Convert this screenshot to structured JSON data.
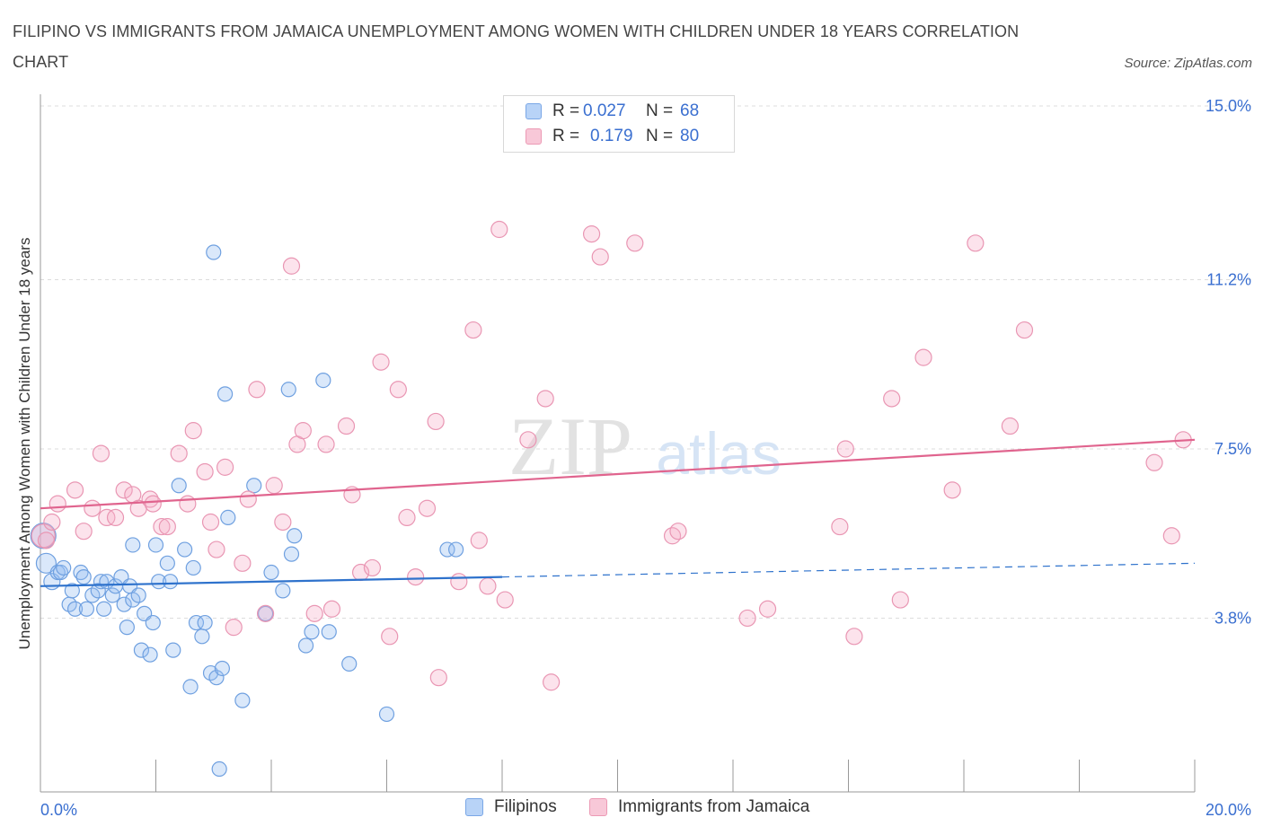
{
  "title": "FILIPINO VS IMMIGRANTS FROM JAMAICA UNEMPLOYMENT AMONG WOMEN WITH CHILDREN UNDER 18 YEARS CORRELATION CHART",
  "source": "Source: ZipAtlas.com",
  "watermark": {
    "zip": "ZIP",
    "atlas": "atlas"
  },
  "legend": {
    "r_label": "R =",
    "n_label": "N =",
    "rows": [
      {
        "name": "Filipinos",
        "r": "0.027",
        "n": "68",
        "fill": "#b8d3f7",
        "stroke": "#7aa7e6"
      },
      {
        "name": "Immigrants from Jamaica",
        "r": "0.179",
        "n": "80",
        "fill": "#f8c8d8",
        "stroke": "#ec9ab5"
      }
    ]
  },
  "colors": {
    "blue_fill": "rgba(150,190,240,0.35)",
    "blue_stroke": "#6fa0e0",
    "blue_line": "#2e72cc",
    "pink_fill": "rgba(245,175,200,0.35)",
    "pink_stroke": "#e996b3",
    "pink_line": "#e0648e",
    "tick_label": "#3a6fd0",
    "grid": "#dcdcdc"
  },
  "chart_data": {
    "type": "scatter",
    "xlabel": "",
    "ylabel": "Unemployment Among Women with Children Under 18 years",
    "xlim": [
      0,
      20
    ],
    "ylim": [
      0,
      15
    ],
    "x_tick_labels": [
      {
        "value": 0,
        "label": "0.0%"
      },
      {
        "value": 20,
        "label": "20.0%"
      }
    ],
    "y_tick_labels": [
      {
        "value": 3.8,
        "label": "3.8%"
      },
      {
        "value": 7.5,
        "label": "7.5%"
      },
      {
        "value": 11.2,
        "label": "11.2%"
      },
      {
        "value": 15.0,
        "label": "15.0%"
      }
    ],
    "x_minor_ticks": [
      2,
      4,
      6,
      8,
      10,
      12,
      14,
      16,
      18
    ],
    "series": [
      {
        "name": "Filipinos",
        "color": "blue",
        "trend": {
          "x0": 0,
          "y0": 4.5,
          "x1": 8,
          "y1": 4.7,
          "dashed_to_x": 20,
          "dashed_to_y": 5.0
        },
        "points": [
          [
            0.05,
            5.6,
            14
          ],
          [
            0.1,
            5.0,
            11
          ],
          [
            0.2,
            4.6,
            9
          ],
          [
            0.3,
            4.8,
            8
          ],
          [
            0.35,
            4.8,
            8
          ],
          [
            0.4,
            4.9,
            8
          ],
          [
            0.5,
            4.1,
            8
          ],
          [
            0.55,
            4.4,
            8
          ],
          [
            0.6,
            4.0,
            8
          ],
          [
            0.7,
            4.8,
            8
          ],
          [
            0.75,
            4.7,
            8
          ],
          [
            0.8,
            4.0,
            8
          ],
          [
            0.9,
            4.3,
            8
          ],
          [
            1.0,
            4.4,
            8
          ],
          [
            1.05,
            4.6,
            8
          ],
          [
            1.1,
            4.0,
            8
          ],
          [
            1.15,
            4.6,
            8
          ],
          [
            1.25,
            4.3,
            8
          ],
          [
            1.3,
            4.5,
            8
          ],
          [
            1.4,
            4.7,
            8
          ],
          [
            1.45,
            4.1,
            8
          ],
          [
            1.5,
            3.6,
            8
          ],
          [
            1.55,
            4.5,
            8
          ],
          [
            1.6,
            4.2,
            8
          ],
          [
            1.7,
            4.3,
            8
          ],
          [
            1.6,
            5.4,
            8
          ],
          [
            1.8,
            3.9,
            8
          ],
          [
            1.75,
            3.1,
            8
          ],
          [
            1.9,
            3.0,
            8
          ],
          [
            1.95,
            3.7,
            8
          ],
          [
            2.0,
            5.4,
            8
          ],
          [
            2.05,
            4.6,
            8
          ],
          [
            2.2,
            5.0,
            8
          ],
          [
            2.25,
            4.6,
            8
          ],
          [
            2.3,
            3.1,
            8
          ],
          [
            2.4,
            6.7,
            8
          ],
          [
            2.5,
            5.3,
            8
          ],
          [
            2.6,
            2.3,
            8
          ],
          [
            2.65,
            4.9,
            8
          ],
          [
            2.7,
            3.7,
            8
          ],
          [
            2.8,
            3.4,
            8
          ],
          [
            2.85,
            3.7,
            8
          ],
          [
            2.95,
            2.6,
            8
          ],
          [
            3.0,
            11.8,
            8
          ],
          [
            3.05,
            2.5,
            8
          ],
          [
            3.1,
            0.5,
            8
          ],
          [
            3.15,
            2.7,
            8
          ],
          [
            3.2,
            8.7,
            8
          ],
          [
            3.25,
            6.0,
            8
          ],
          [
            3.5,
            2.0,
            8
          ],
          [
            3.7,
            6.7,
            8
          ],
          [
            3.9,
            3.9,
            8
          ],
          [
            4.0,
            4.8,
            8
          ],
          [
            4.2,
            4.4,
            8
          ],
          [
            4.3,
            8.8,
            8
          ],
          [
            4.35,
            5.2,
            8
          ],
          [
            4.4,
            5.6,
            8
          ],
          [
            4.6,
            3.2,
            8
          ],
          [
            4.7,
            3.5,
            8
          ],
          [
            4.9,
            9.0,
            8
          ],
          [
            5.0,
            3.5,
            8
          ],
          [
            5.35,
            2.8,
            8
          ],
          [
            6.0,
            1.7,
            8
          ],
          [
            7.05,
            5.3,
            8
          ],
          [
            7.2,
            5.3,
            8
          ]
        ]
      },
      {
        "name": "Immigrants from Jamaica",
        "color": "pink",
        "trend": {
          "x0": 0,
          "y0": 6.2,
          "x1": 20,
          "y1": 7.7
        },
        "points": [
          [
            0.05,
            5.6,
            13
          ],
          [
            0.1,
            5.5,
            9
          ],
          [
            0.2,
            5.9,
            9
          ],
          [
            0.3,
            6.3,
            9
          ],
          [
            0.6,
            6.6,
            9
          ],
          [
            0.75,
            5.7,
            9
          ],
          [
            0.9,
            6.2,
            9
          ],
          [
            1.05,
            7.4,
            9
          ],
          [
            1.15,
            6.0,
            9
          ],
          [
            1.3,
            6.0,
            9
          ],
          [
            1.45,
            6.6,
            9
          ],
          [
            1.6,
            6.5,
            9
          ],
          [
            1.7,
            6.2,
            9
          ],
          [
            1.9,
            6.4,
            9
          ],
          [
            1.95,
            6.3,
            9
          ],
          [
            2.1,
            5.8,
            9
          ],
          [
            2.2,
            5.8,
            9
          ],
          [
            2.4,
            7.4,
            9
          ],
          [
            2.55,
            6.3,
            9
          ],
          [
            2.65,
            7.9,
            9
          ],
          [
            2.85,
            7.0,
            9
          ],
          [
            2.95,
            5.9,
            9
          ],
          [
            3.05,
            5.3,
            9
          ],
          [
            3.2,
            7.1,
            9
          ],
          [
            3.35,
            3.6,
            9
          ],
          [
            3.5,
            5.0,
            9
          ],
          [
            3.6,
            6.4,
            9
          ],
          [
            3.75,
            8.8,
            9
          ],
          [
            3.9,
            3.9,
            9
          ],
          [
            4.05,
            6.7,
            9
          ],
          [
            4.2,
            5.9,
            9
          ],
          [
            4.35,
            11.5,
            9
          ],
          [
            4.45,
            7.6,
            9
          ],
          [
            4.55,
            7.9,
            9
          ],
          [
            4.75,
            3.9,
            9
          ],
          [
            4.95,
            7.6,
            9
          ],
          [
            5.05,
            4.0,
            9
          ],
          [
            5.3,
            8.0,
            9
          ],
          [
            5.4,
            6.5,
            9
          ],
          [
            5.55,
            4.8,
            9
          ],
          [
            5.75,
            4.9,
            9
          ],
          [
            5.9,
            9.4,
            9
          ],
          [
            6.05,
            3.4,
            9
          ],
          [
            6.2,
            8.8,
            9
          ],
          [
            6.35,
            6.0,
            9
          ],
          [
            6.5,
            4.7,
            9
          ],
          [
            6.7,
            6.2,
            9
          ],
          [
            6.85,
            8.1,
            9
          ],
          [
            6.9,
            2.5,
            9
          ],
          [
            7.25,
            4.6,
            9
          ],
          [
            7.5,
            10.1,
            9
          ],
          [
            7.6,
            5.5,
            9
          ],
          [
            7.75,
            4.5,
            9
          ],
          [
            7.95,
            12.3,
            9
          ],
          [
            8.05,
            4.2,
            9
          ],
          [
            8.45,
            7.7,
            9
          ],
          [
            8.75,
            8.6,
            9
          ],
          [
            8.85,
            2.4,
            9
          ],
          [
            9.55,
            12.2,
            9
          ],
          [
            9.7,
            11.7,
            9
          ],
          [
            10.3,
            12.0,
            9
          ],
          [
            10.95,
            5.6,
            9
          ],
          [
            11.05,
            5.7,
            9
          ],
          [
            12.25,
            3.8,
            9
          ],
          [
            12.6,
            4.0,
            9
          ],
          [
            13.85,
            5.8,
            9
          ],
          [
            13.95,
            7.5,
            9
          ],
          [
            14.1,
            3.4,
            9
          ],
          [
            14.75,
            8.6,
            9
          ],
          [
            14.9,
            4.2,
            9
          ],
          [
            15.3,
            9.5,
            9
          ],
          [
            15.8,
            6.6,
            9
          ],
          [
            16.2,
            12.0,
            9
          ],
          [
            16.8,
            8.0,
            9
          ],
          [
            17.05,
            10.1,
            9
          ],
          [
            19.3,
            7.2,
            9
          ],
          [
            19.6,
            5.6,
            9
          ],
          [
            19.8,
            7.7,
            9
          ]
        ]
      }
    ]
  }
}
